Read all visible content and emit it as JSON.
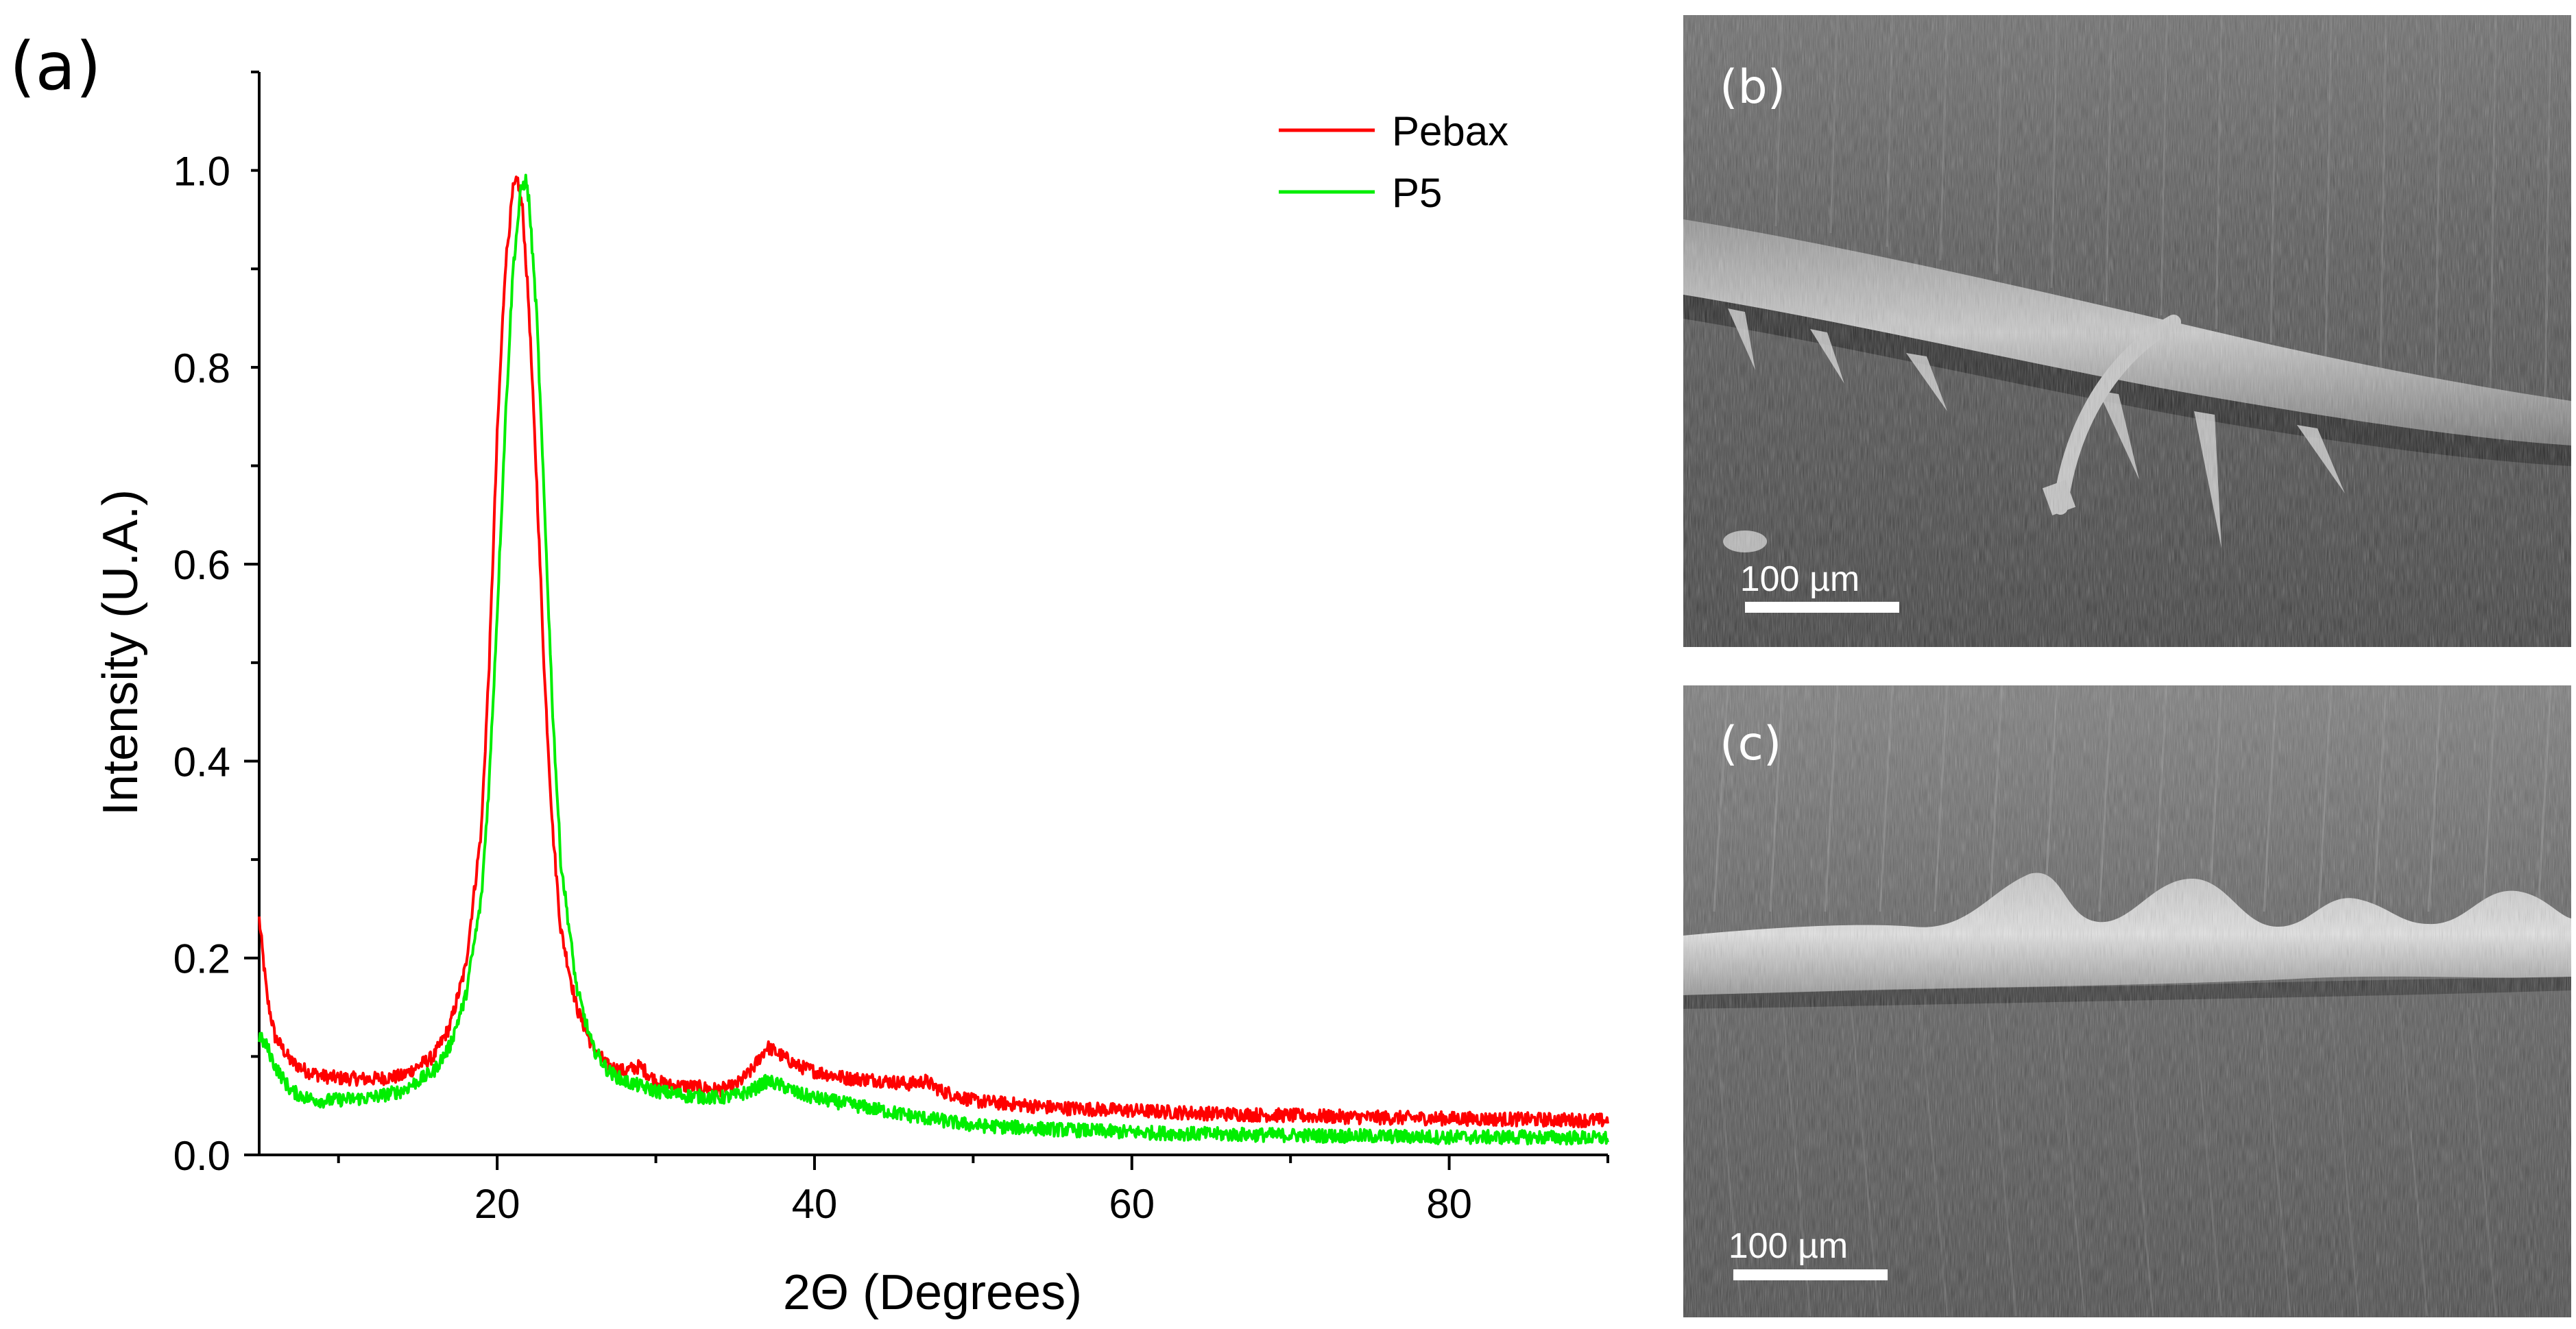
{
  "panels": {
    "a": {
      "label": "(a)"
    },
    "b": {
      "label": "(b)",
      "scale_bar": "100 µm",
      "description_icon": "sem-micrograph-image"
    },
    "c": {
      "label": "(c)",
      "scale_bar": "100 µm",
      "description_icon": "sem-micrograph-image"
    }
  },
  "chart_data": {
    "type": "line",
    "title": "",
    "xlabel": "2Θ (Degrees)",
    "ylabel": "Intensity (U.A.)",
    "xlim": [
      5,
      90
    ],
    "ylim": [
      0,
      1.1
    ],
    "xticks": [
      20,
      40,
      60,
      80
    ],
    "xtick_labels": [
      "20",
      "40",
      "60",
      "80"
    ],
    "yticks": [
      0.0,
      0.2,
      0.4,
      0.6,
      0.8,
      1.0
    ],
    "ytick_labels": [
      "0.0",
      "0.2",
      "0.4",
      "0.6",
      "0.8",
      "1.0"
    ],
    "grid": false,
    "legend_position": "top-right",
    "series": [
      {
        "name": "Pebax",
        "color": "#ff0000",
        "x": [
          5,
          5.5,
          6,
          7,
          8,
          9,
          10,
          12,
          14,
          16,
          17,
          18,
          19,
          19.5,
          20,
          20.5,
          21,
          21.3,
          21.6,
          22,
          22.5,
          23,
          23.5,
          24,
          25,
          26,
          27,
          28,
          29,
          30,
          31,
          32,
          34,
          35,
          36,
          37,
          38,
          39,
          40,
          42,
          44,
          46,
          47,
          48,
          50,
          55,
          60,
          65,
          70,
          75,
          80,
          85,
          90
        ],
        "y": [
          0.24,
          0.16,
          0.12,
          0.095,
          0.085,
          0.08,
          0.078,
          0.077,
          0.08,
          0.1,
          0.13,
          0.19,
          0.33,
          0.5,
          0.73,
          0.9,
          0.98,
          0.99,
          0.96,
          0.86,
          0.68,
          0.48,
          0.33,
          0.23,
          0.15,
          0.11,
          0.09,
          0.085,
          0.09,
          0.075,
          0.07,
          0.07,
          0.066,
          0.07,
          0.085,
          0.11,
          0.1,
          0.09,
          0.085,
          0.078,
          0.076,
          0.072,
          0.075,
          0.065,
          0.055,
          0.048,
          0.045,
          0.042,
          0.04,
          0.038,
          0.037,
          0.036,
          0.035
        ]
      },
      {
        "name": "P5",
        "color": "#00ee00",
        "x": [
          5,
          5.5,
          6,
          7,
          8,
          9,
          10,
          12,
          14,
          16,
          17,
          18,
          19,
          19.5,
          20,
          20.5,
          21,
          21.5,
          21.8,
          22,
          22.5,
          23,
          23.5,
          24,
          25,
          26,
          27,
          28,
          29,
          30,
          32,
          34,
          35,
          36,
          37,
          38,
          39,
          40,
          42,
          44,
          46,
          48,
          50,
          55,
          60,
          65,
          70,
          75,
          80,
          85,
          90
        ],
        "y": [
          0.12,
          0.11,
          0.09,
          0.065,
          0.058,
          0.055,
          0.056,
          0.058,
          0.065,
          0.085,
          0.11,
          0.16,
          0.26,
          0.38,
          0.55,
          0.74,
          0.9,
          0.98,
          0.99,
          0.97,
          0.85,
          0.65,
          0.45,
          0.3,
          0.17,
          0.11,
          0.085,
          0.075,
          0.07,
          0.065,
          0.06,
          0.058,
          0.06,
          0.065,
          0.075,
          0.07,
          0.062,
          0.058,
          0.052,
          0.046,
          0.04,
          0.035,
          0.03,
          0.026,
          0.023,
          0.021,
          0.02,
          0.019,
          0.018,
          0.018,
          0.017
        ]
      }
    ]
  }
}
